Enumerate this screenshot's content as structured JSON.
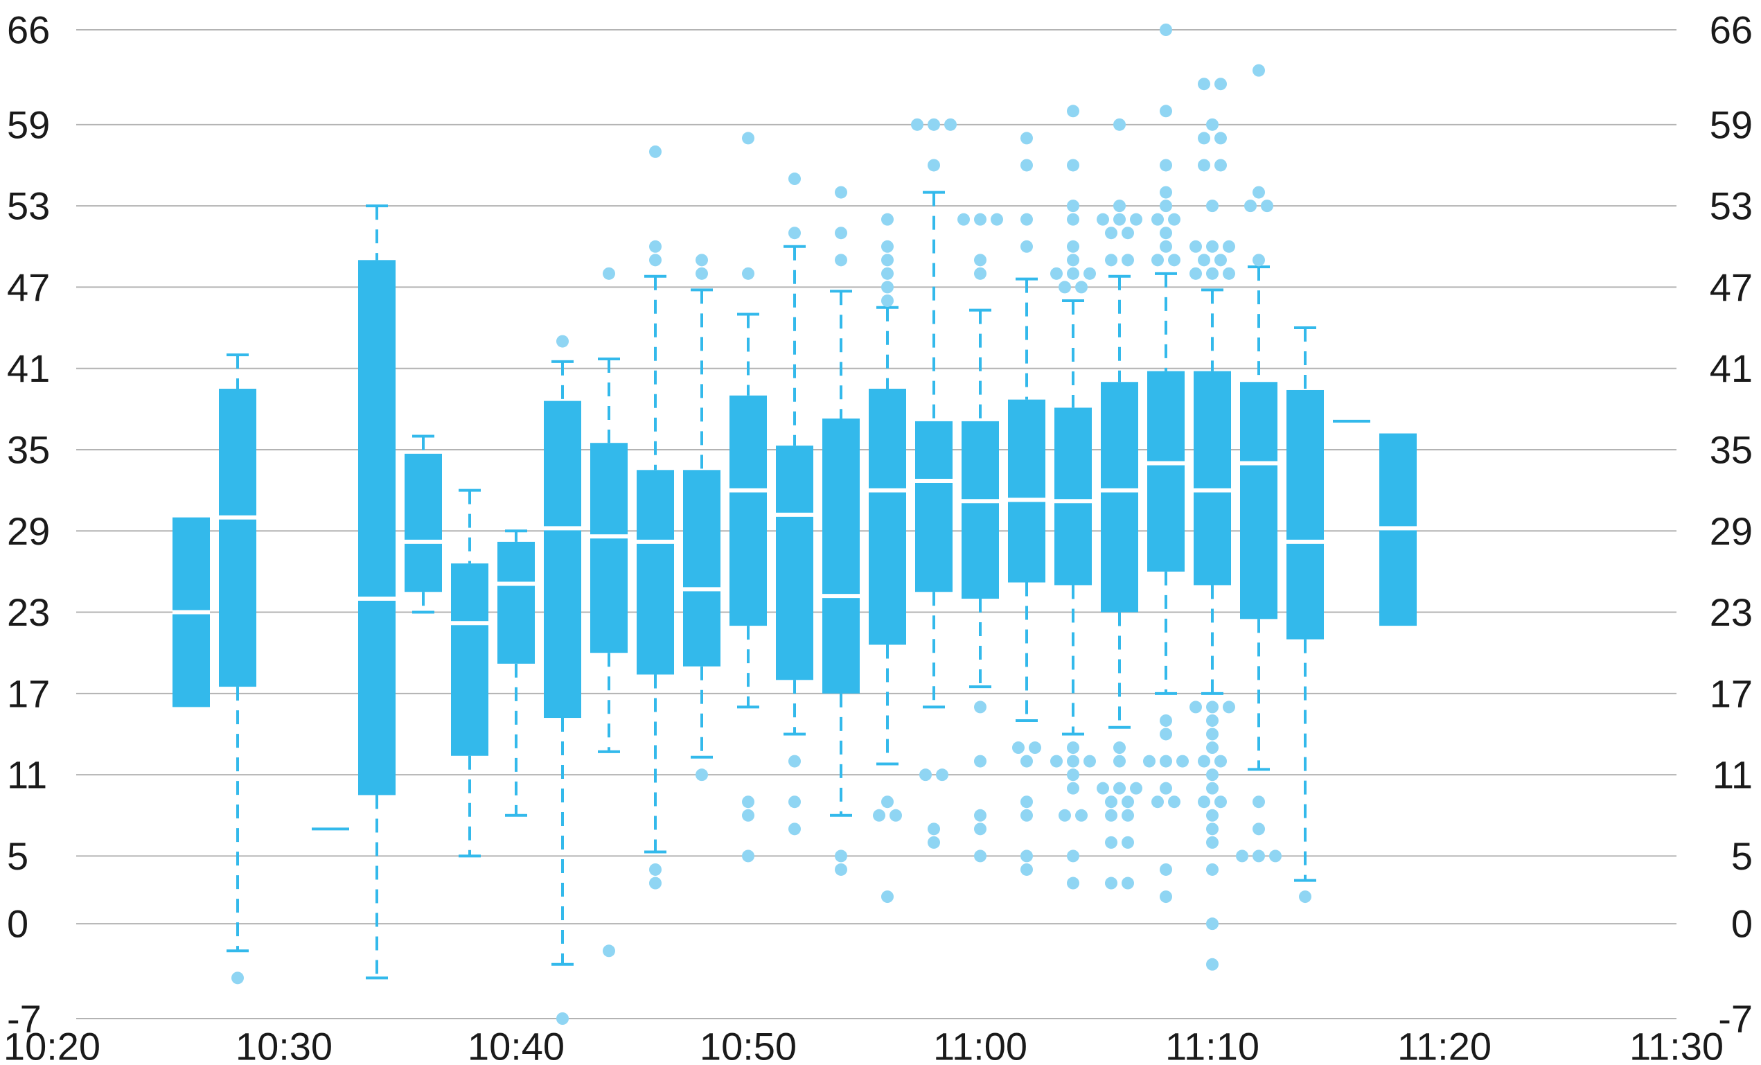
{
  "chart_data": {
    "type": "box",
    "title": "",
    "xlabel": "",
    "ylabel": "",
    "y_ticks": [
      -7,
      0,
      5,
      11,
      17,
      23,
      29,
      35,
      41,
      47,
      53,
      59,
      66
    ],
    "y_range": [
      -7,
      66
    ],
    "x_ticks": [
      "10:20",
      "10:30",
      "10:40",
      "10:50",
      "11:00",
      "11:10",
      "11:20",
      "11:30"
    ],
    "x_range_minutes": [
      "10:20",
      "11:30"
    ],
    "grid": "horizontal",
    "secondary_y_axis": "mirrored on right",
    "colors": {
      "box": "#33b9eb",
      "outlier": "#8fd5f3",
      "grid": "#b3b3b3",
      "median": "#ffffff"
    },
    "boxes": [
      {
        "time": "10:26",
        "low": 16,
        "q1": 16,
        "median": 23,
        "q3": 30,
        "high": 30,
        "outliers": []
      },
      {
        "time": "10:28",
        "low": -2,
        "q1": 17.5,
        "median": 30,
        "q3": 39.5,
        "high": 42,
        "outliers": [
          -4
        ]
      },
      {
        "time": "10:32",
        "low": 7,
        "q1": 7,
        "median": 7,
        "q3": 7,
        "high": 7,
        "outliers": []
      },
      {
        "time": "10:34",
        "low": -4,
        "q1": 9.5,
        "median": 24,
        "q3": 49,
        "high": 53,
        "outliers": []
      },
      {
        "time": "10:36",
        "low": 23,
        "q1": 24.5,
        "median": 28.2,
        "q3": 34.7,
        "high": 36,
        "outliers": []
      },
      {
        "time": "10:38",
        "low": 5,
        "q1": 12.4,
        "median": 22.2,
        "q3": 26.6,
        "high": 32,
        "outliers": []
      },
      {
        "time": "10:40",
        "low": 8,
        "q1": 19.2,
        "median": 25.1,
        "q3": 28.2,
        "high": 29,
        "outliers": []
      },
      {
        "time": "10:42",
        "low": -3,
        "q1": 15.2,
        "median": 29.2,
        "q3": 38.6,
        "high": 41.5,
        "outliers": [
          -7,
          43
        ]
      },
      {
        "time": "10:44",
        "low": 12.7,
        "q1": 20,
        "median": 28.6,
        "q3": 35.5,
        "high": 41.7,
        "outliers": [
          -2,
          48
        ]
      },
      {
        "time": "10:46",
        "low": 5.3,
        "q1": 18.4,
        "median": 28.2,
        "q3": 33.5,
        "high": 47.8,
        "outliers": [
          3,
          4,
          49,
          50,
          57
        ]
      },
      {
        "time": "10:48",
        "low": 12.3,
        "q1": 19,
        "median": 24.7,
        "q3": 33.5,
        "high": 46.8,
        "outliers": [
          11,
          48,
          49
        ]
      },
      {
        "time": "10:50",
        "low": 16,
        "q1": 22,
        "median": 32,
        "q3": 39,
        "high": 45,
        "outliers": [
          5,
          8,
          9,
          48,
          58
        ]
      },
      {
        "time": "10:52",
        "low": 14,
        "q1": 18,
        "median": 30.2,
        "q3": 35.3,
        "high": 50,
        "outliers": [
          7,
          9,
          12,
          51,
          55
        ]
      },
      {
        "time": "10:54",
        "low": 8,
        "q1": 17,
        "median": 24.2,
        "q3": 37.3,
        "high": 46.7,
        "outliers": [
          4,
          5,
          49,
          51,
          54
        ]
      },
      {
        "time": "10:56",
        "low": 11.8,
        "q1": 20.6,
        "median": 32,
        "q3": 39.5,
        "high": 45.5,
        "outliers": [
          2,
          8,
          8,
          9,
          46,
          47,
          48,
          49,
          50,
          52
        ]
      },
      {
        "time": "10:58",
        "low": 16,
        "q1": 24.5,
        "median": 32.7,
        "q3": 37.1,
        "high": 54,
        "outliers": [
          6,
          7,
          11,
          11,
          56,
          59,
          59,
          59
        ]
      },
      {
        "time": "11:00",
        "low": 17.5,
        "q1": 24,
        "median": 31.2,
        "q3": 37.1,
        "high": 45.3,
        "outliers": [
          5,
          7,
          8,
          12,
          16,
          48,
          49,
          52,
          52,
          52
        ]
      },
      {
        "time": "11:02",
        "low": 15,
        "q1": 25.2,
        "median": 31.3,
        "q3": 38.7,
        "high": 47.6,
        "outliers": [
          4,
          5,
          8,
          9,
          12,
          13,
          13,
          50,
          52,
          56,
          58
        ]
      },
      {
        "time": "11:04",
        "low": 14,
        "q1": 25,
        "median": 31.2,
        "q3": 38.1,
        "high": 46,
        "outliers": [
          3,
          5,
          8,
          8,
          10,
          11,
          12,
          12,
          12,
          13,
          47,
          47,
          48,
          48,
          48,
          49,
          50,
          52,
          53,
          56,
          60
        ]
      },
      {
        "time": "11:06",
        "low": 14.5,
        "q1": 23,
        "median": 32,
        "q3": 40,
        "high": 47.8,
        "outliers": [
          3,
          3,
          6,
          6,
          8,
          8,
          9,
          9,
          10,
          10,
          10,
          12,
          13,
          49,
          49,
          51,
          51,
          52,
          52,
          52,
          53,
          59
        ]
      },
      {
        "time": "11:08",
        "low": 17,
        "q1": 26,
        "median": 34,
        "q3": 40.8,
        "high": 48,
        "outliers": [
          2,
          4,
          9,
          9,
          10,
          12,
          12,
          12,
          14,
          15,
          49,
          49,
          50,
          51,
          52,
          52,
          53,
          54,
          56,
          60,
          66
        ]
      },
      {
        "time": "11:10",
        "low": 17,
        "q1": 25,
        "median": 32,
        "q3": 40.8,
        "high": 46.8,
        "outliers": [
          -3,
          0,
          4,
          6,
          7,
          8,
          9,
          9,
          10,
          11,
          12,
          12,
          13,
          14,
          15,
          16,
          16,
          16,
          48,
          48,
          48,
          49,
          49,
          50,
          50,
          50,
          53,
          56,
          56,
          58,
          58,
          59,
          62,
          62
        ]
      },
      {
        "time": "11:12",
        "low": 11.4,
        "q1": 22.5,
        "median": 34,
        "q3": 40,
        "high": 48.5,
        "outliers": [
          5,
          5,
          5,
          7,
          9,
          49,
          53,
          53,
          54,
          63
        ]
      },
      {
        "time": "11:14",
        "low": 3.2,
        "q1": 21,
        "median": 28.2,
        "q3": 39.4,
        "high": 44,
        "outliers": [
          2
        ]
      },
      {
        "time": "11:16",
        "low": 37.1,
        "q1": 37.1,
        "median": 37.1,
        "q3": 37.1,
        "high": 37.1,
        "outliers": []
      },
      {
        "time": "11:18",
        "low": 22,
        "q1": 22,
        "median": 29.2,
        "q3": 36.2,
        "high": 36.2,
        "outliers": []
      }
    ]
  }
}
